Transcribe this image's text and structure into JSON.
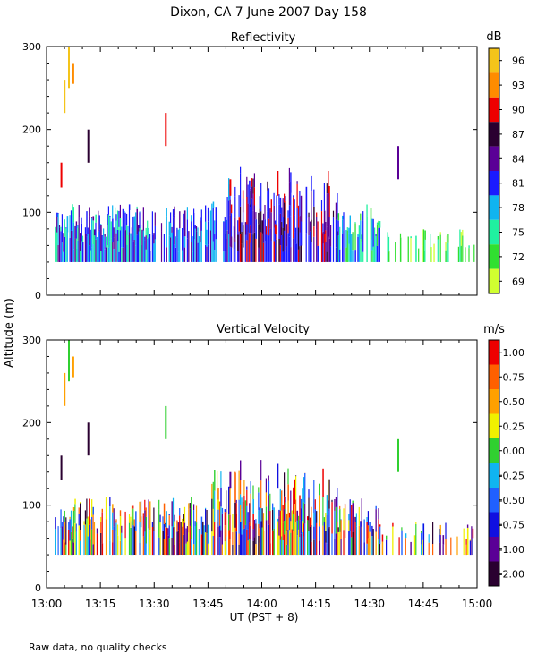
{
  "title": "Dixon, CA  7 June 2007  Day 158",
  "ylabel": "Altitude (m)",
  "xlabel": "UT  (PST + 8)",
  "footnote": "Raw data, no quality checks",
  "chart_data": [
    {
      "type": "heatmap",
      "title": "Reflectivity",
      "ylabel": "Altitude (m)",
      "xlim": [
        13.0,
        15.0
      ],
      "ylim": [
        0,
        300
      ],
      "yticks": [
        0,
        100,
        200,
        300
      ],
      "x_ticklabels": [],
      "colorbar": {
        "units": "dB",
        "labels": [
          "96",
          "93",
          "90",
          "87",
          "84",
          "81",
          "78",
          "75",
          "72",
          "69"
        ],
        "colors": [
          "#f4c41a",
          "#ff8c00",
          "#ee0000",
          "#2a0030",
          "#5a0096",
          "#1a1aff",
          "#10b4f0",
          "#20f0a0",
          "#30e030",
          "#d0ff30"
        ]
      },
      "data_notes": "Echoes mostly between 40 and 120 m altitude from 13:03 to 14:59 UT; strongest (84-90 dB) near 13:55-14:20; isolated returns up to ~300 m near 13:08-13:11 UT"
    },
    {
      "type": "heatmap",
      "title": "Vertical Velocity",
      "ylabel": "Altitude (m)",
      "xlim": [
        13.0,
        15.0
      ],
      "ylim": [
        0,
        300
      ],
      "yticks": [
        0,
        100,
        200,
        300
      ],
      "x_ticklabels": [
        "13:00",
        "13:15",
        "13:30",
        "13:45",
        "14:00",
        "14:15",
        "14:30",
        "14:45",
        "15:00"
      ],
      "colorbar": {
        "units": "m/s",
        "labels": [
          "1.00",
          "0.75",
          "0.50",
          "0.25",
          "0.00",
          "-0.25",
          "-0.50",
          "-0.75",
          "-1.00",
          "-2.00"
        ],
        "colors": [
          "#ee0000",
          "#ff6000",
          "#ffa000",
          "#f0f000",
          "#30d030",
          "#10b4f0",
          "#2060ff",
          "#1010e0",
          "#5a0096",
          "#2a0030"
        ]
      },
      "data_notes": "Mixed velocities between about -1 and +1 m/s in the 40-140 m layer; scattered isolated returns aloft"
    }
  ]
}
